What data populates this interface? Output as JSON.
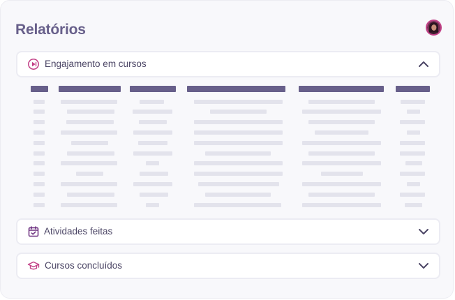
{
  "page": {
    "title": "Relatórios"
  },
  "user": {
    "avatar": "user-avatar"
  },
  "sections": [
    {
      "label": "Engajamento em cursos",
      "icon": "play-circle-icon",
      "expanded": true
    },
    {
      "label": "Atividades feitas",
      "icon": "calendar-check-icon",
      "expanded": false
    },
    {
      "label": "Cursos concluídos",
      "icon": "graduation-cap-icon",
      "expanded": false
    }
  ],
  "report_table": {
    "columns": 6,
    "rows": 11,
    "content": "placeholder skeleton bars"
  },
  "colors": {
    "title": "#675f8a",
    "accent": "#c23f86",
    "header_bar": "#675f8a",
    "skeleton_bar": "#e3e3ec",
    "panel_border": "#ececf3"
  }
}
